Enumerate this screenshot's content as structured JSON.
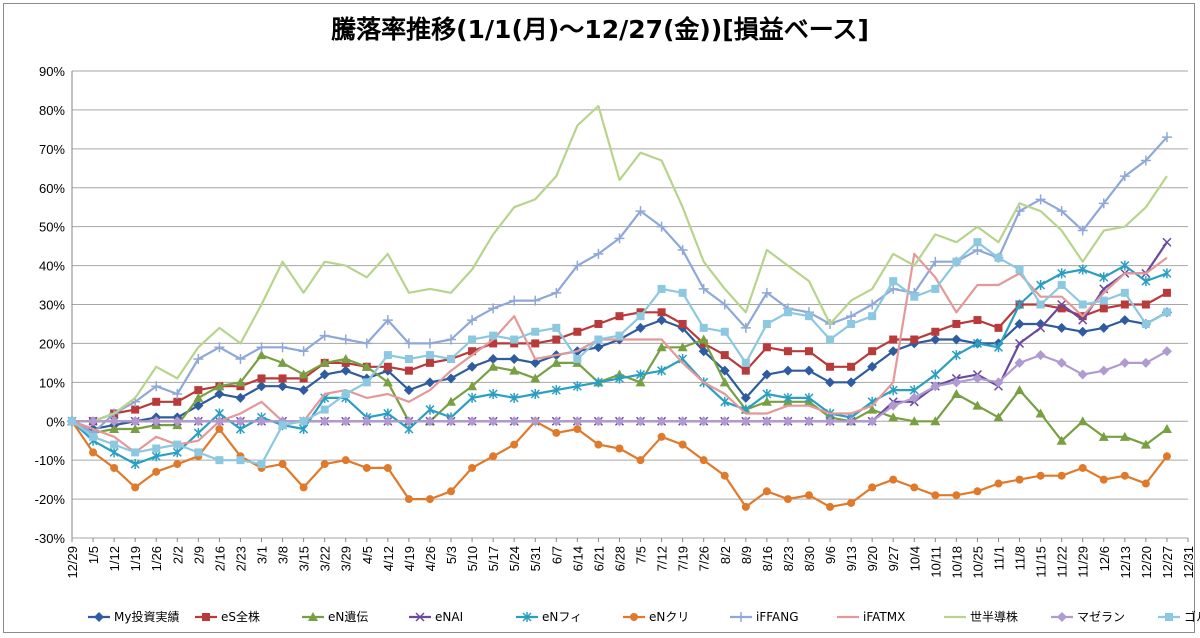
{
  "chart_data": {
    "type": "line",
    "title": "騰落率推移(1/1(月)～12/27(金))[損益ベース]",
    "xlabel": "",
    "ylabel": "",
    "ylim": [
      -30,
      90
    ],
    "yticks": [
      "90%",
      "80%",
      "70%",
      "60%",
      "50%",
      "40%",
      "30%",
      "20%",
      "10%",
      "0%",
      "-10%",
      "-20%",
      "-30%"
    ],
    "grid": true,
    "legend": "bottom",
    "xticks": [
      "12/29",
      "1/5",
      "1/12",
      "1/19",
      "1/26",
      "2/2",
      "2/9",
      "2/16",
      "2/23",
      "3/1",
      "3/8",
      "3/15",
      "3/22",
      "3/29",
      "4/5",
      "4/12",
      "4/19",
      "4/26",
      "5/3",
      "5/10",
      "5/17",
      "5/24",
      "5/31",
      "6/7",
      "6/14",
      "6/21",
      "6/28",
      "7/5",
      "7/12",
      "7/19",
      "7/26",
      "8/2",
      "8/9",
      "8/16",
      "8/23",
      "8/30",
      "9/6",
      "9/13",
      "9/20",
      "9/27",
      "10/4",
      "10/11",
      "10/18",
      "10/25",
      "11/1",
      "11/8",
      "11/15",
      "11/22",
      "11/29",
      "12/6",
      "12/13",
      "12/20",
      "12/27",
      "12/31"
    ],
    "series": [
      {
        "name": "My投資実績",
        "color": "#2e5c9e",
        "marker": "diamond",
        "values": [
          0,
          -2,
          -1,
          0,
          1,
          1,
          4,
          7,
          6,
          9,
          9,
          8,
          12,
          13,
          11,
          13,
          8,
          10,
          11,
          14,
          16,
          16,
          15,
          17,
          18,
          19,
          21,
          24,
          26,
          24,
          18,
          13,
          6,
          12,
          13,
          13,
          10,
          10,
          14,
          18,
          20,
          21,
          21,
          20,
          20,
          25,
          25,
          24,
          23,
          24,
          26,
          25,
          28
        ]
      },
      {
        "name": "eS全株",
        "color": "#b83a3a",
        "marker": "square",
        "values": [
          0,
          0,
          2,
          3,
          5,
          5,
          8,
          9,
          9,
          11,
          11,
          11,
          15,
          15,
          14,
          14,
          13,
          15,
          16,
          18,
          20,
          20,
          20,
          21,
          23,
          25,
          27,
          28,
          28,
          25,
          20,
          17,
          13,
          19,
          18,
          18,
          14,
          14,
          18,
          21,
          21,
          23,
          25,
          26,
          24,
          30,
          30,
          29,
          27,
          29,
          30,
          30,
          33
        ]
      },
      {
        "name": "eN遺伝",
        "color": "#78a042",
        "marker": "triangle",
        "values": [
          0,
          -3,
          -2,
          -2,
          -1,
          -1,
          6,
          9,
          10,
          17,
          15,
          12,
          15,
          16,
          14,
          10,
          0,
          0,
          5,
          9,
          14,
          13,
          11,
          15,
          15,
          10,
          12,
          10,
          19,
          19,
          21,
          10,
          3,
          5,
          5,
          5,
          1,
          0,
          3,
          1,
          0,
          0,
          7,
          4,
          1,
          8,
          2,
          -5,
          0,
          -4,
          -4,
          -6,
          -2
        ]
      },
      {
        "name": "eNAI",
        "color": "#6a4a9c",
        "marker": "x",
        "values": [
          0,
          0,
          0,
          0,
          0,
          0,
          0,
          0,
          0,
          0,
          0,
          0,
          0,
          0,
          0,
          0,
          0,
          0,
          0,
          0,
          0,
          0,
          0,
          0,
          0,
          0,
          0,
          0,
          0,
          0,
          0,
          0,
          0,
          0,
          0,
          0,
          0,
          0,
          0,
          5,
          5,
          9,
          11,
          12,
          9,
          20,
          24,
          30,
          26,
          34,
          38,
          38,
          46
        ]
      },
      {
        "name": "eNフィ",
        "color": "#2a9fc1",
        "marker": "asterisk",
        "values": [
          0,
          -5,
          -8,
          -11,
          -9,
          -8,
          -3,
          2,
          -2,
          1,
          -1,
          -2,
          6,
          6,
          1,
          2,
          -2,
          3,
          1,
          6,
          7,
          6,
          7,
          8,
          9,
          10,
          11,
          12,
          13,
          16,
          10,
          5,
          3,
          7,
          6,
          6,
          2,
          1,
          5,
          8,
          8,
          12,
          17,
          20,
          19,
          30,
          35,
          38,
          39,
          37,
          40,
          36,
          38
        ]
      },
      {
        "name": "eNクリ",
        "color": "#e07a2a",
        "marker": "circle",
        "values": [
          0,
          -8,
          -12,
          -17,
          -13,
          -11,
          -9,
          -2,
          -9,
          -12,
          -11,
          -17,
          -11,
          -10,
          -12,
          -12,
          -20,
          -20,
          -18,
          -12,
          -9,
          -6,
          0,
          -3,
          -2,
          -6,
          -7,
          -10,
          -4,
          -6,
          -10,
          -14,
          -22,
          -18,
          -20,
          -19,
          -22,
          -21,
          -17,
          -15,
          -17,
          -19,
          -19,
          -18,
          -16,
          -15,
          -14,
          -14,
          -12,
          -15,
          -14,
          -16,
          -9
        ]
      },
      {
        "name": "iFFANG",
        "color": "#8fa8d8",
        "marker": "plus",
        "values": [
          0,
          -3,
          2,
          5,
          9,
          7,
          16,
          19,
          16,
          19,
          19,
          18,
          22,
          21,
          20,
          26,
          20,
          20,
          21,
          26,
          29,
          31,
          31,
          33,
          40,
          43,
          47,
          54,
          50,
          44,
          34,
          30,
          24,
          33,
          29,
          28,
          25,
          27,
          30,
          34,
          33,
          41,
          41,
          44,
          42,
          54,
          57,
          54,
          49,
          56,
          63,
          67,
          73
        ]
      },
      {
        "name": "iFATMX",
        "color": "#e49898",
        "marker": "none",
        "values": [
          0,
          -2,
          -4,
          -8,
          -4,
          -6,
          -5,
          0,
          2,
          5,
          0,
          0,
          7,
          8,
          6,
          7,
          5,
          8,
          13,
          17,
          21,
          27,
          16,
          17,
          18,
          21,
          21,
          21,
          21,
          15,
          10,
          7,
          2,
          2,
          4,
          4,
          2,
          2,
          4,
          10,
          43,
          37,
          28,
          35,
          35,
          38,
          32,
          32,
          27,
          33,
          38,
          38,
          42
        ]
      },
      {
        "name": "世半導株",
        "color": "#b8d48c",
        "marker": "none",
        "values": [
          0,
          0,
          2,
          6,
          14,
          11,
          19,
          24,
          20,
          30,
          41,
          33,
          41,
          40,
          37,
          43,
          33,
          34,
          33,
          39,
          48,
          55,
          57,
          63,
          76,
          81,
          62,
          69,
          67,
          55,
          41,
          34,
          28,
          44,
          40,
          36,
          25,
          31,
          34,
          43,
          40,
          48,
          46,
          50,
          46,
          56,
          54,
          49,
          41,
          49,
          50,
          55,
          63
        ]
      },
      {
        "name": "マゼラン",
        "color": "#b09ad0",
        "marker": "diamond",
        "values": [
          0,
          0,
          0,
          0,
          0,
          0,
          0,
          0,
          0,
          0,
          0,
          0,
          0,
          0,
          0,
          0,
          0,
          0,
          0,
          0,
          0,
          0,
          0,
          0,
          0,
          0,
          0,
          0,
          0,
          0,
          0,
          0,
          0,
          0,
          0,
          0,
          0,
          0,
          0,
          4,
          6,
          9,
          10,
          11,
          10,
          15,
          17,
          15,
          12,
          13,
          15,
          15,
          18
        ]
      },
      {
        "name": "ゴルドF",
        "color": "#8cc8e0",
        "marker": "square",
        "values": [
          0,
          -4,
          -6,
          -8,
          -7,
          -6,
          -8,
          -10,
          -10,
          -11,
          -1,
          0,
          3,
          7,
          10,
          17,
          16,
          17,
          16,
          21,
          22,
          21,
          23,
          24,
          16,
          21,
          22,
          27,
          34,
          33,
          24,
          23,
          15,
          25,
          28,
          27,
          21,
          25,
          27,
          36,
          32,
          34,
          41,
          46,
          42,
          39,
          30,
          35,
          30,
          31,
          33,
          25,
          28
        ]
      }
    ]
  }
}
